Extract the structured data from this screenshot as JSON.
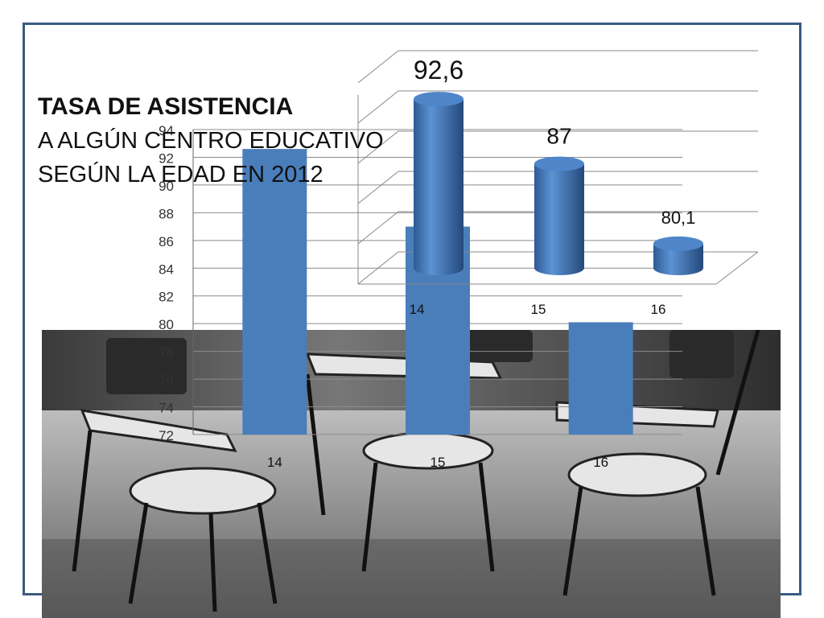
{
  "title": {
    "line1": "TASA DE ASISTENCIA",
    "line2": "A ALGÚN CENTRO EDUCATIVO",
    "line3": "SEGÚN LA EDAD EN 2012"
  },
  "chart_data": [
    {
      "type": "bar",
      "categories": [
        "14",
        "15",
        "16"
      ],
      "values": [
        92.6,
        87,
        80.1
      ],
      "ylim": [
        72,
        94
      ],
      "yticks": [
        "72",
        "74",
        "76",
        "78",
        "80",
        "82",
        "84",
        "86",
        "88",
        "90",
        "92",
        "94"
      ],
      "grid": true,
      "color": "#4a7ebb"
    },
    {
      "type": "bar",
      "style": "3d-cylinder",
      "categories": [
        "14",
        "15",
        "16"
      ],
      "values": [
        92.6,
        87,
        80.1
      ],
      "data_labels": [
        "92,6",
        "87",
        "80,1"
      ],
      "grid": true,
      "color": "#3f73b8"
    }
  ],
  "colors": {
    "frame": "#3a5a80",
    "bar": "#4a7ebb",
    "cylinder": "#3f73b8"
  }
}
